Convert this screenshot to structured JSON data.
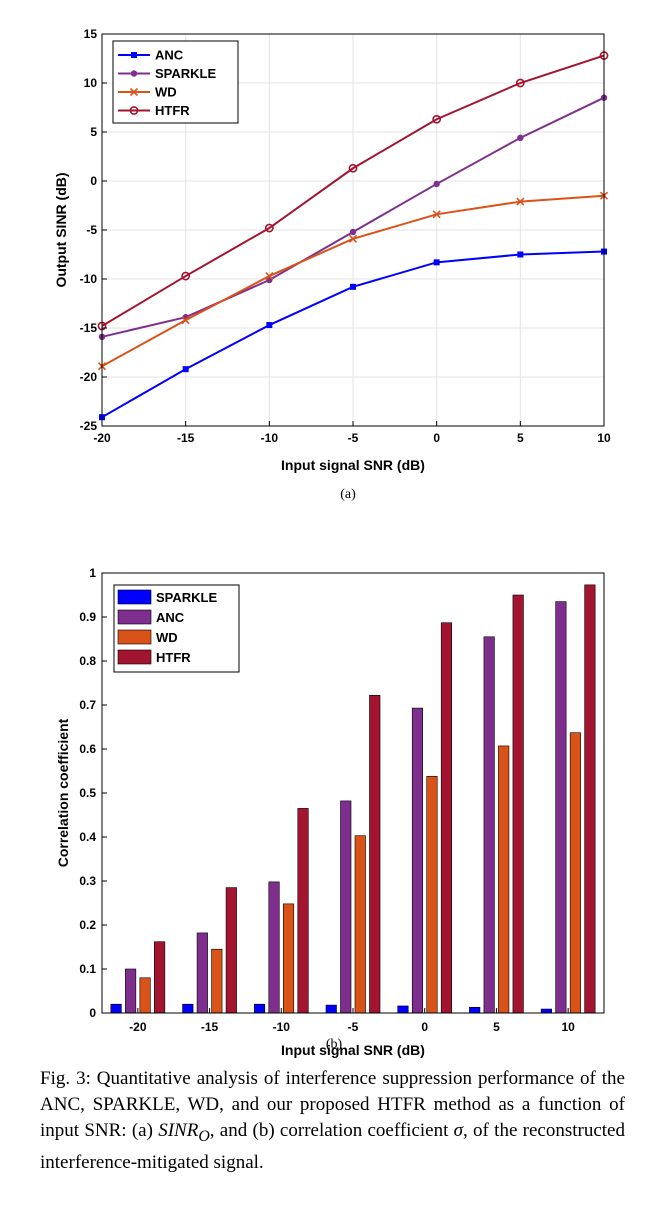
{
  "chart_data": [
    {
      "type": "line",
      "subtitle": "(a)",
      "xlabel": "Input signal SNR (dB)",
      "ylabel": "Output SINR (dB)",
      "xlim": [
        -20,
        10
      ],
      "ylim": [
        -25,
        15
      ],
      "xticks": [
        -20,
        -15,
        -10,
        -5,
        0,
        5,
        10
      ],
      "yticks": [
        -25,
        -20,
        -15,
        -10,
        -5,
        0,
        5,
        10,
        15
      ],
      "grid": true,
      "legend_position": "top-left",
      "x": [
        -20,
        -15,
        -10,
        -5,
        0,
        5,
        10
      ],
      "series": [
        {
          "name": "ANC",
          "color": "#0000ff",
          "marker": "square",
          "values": [
            -24.1,
            -19.2,
            -14.7,
            -10.8,
            -8.3,
            -7.5,
            -7.2
          ]
        },
        {
          "name": "SPARKLE",
          "color": "#7e2f8e",
          "marker": "dot",
          "values": [
            -15.9,
            -13.9,
            -10.1,
            -5.2,
            -0.3,
            4.4,
            8.5
          ]
        },
        {
          "name": "WD",
          "color": "#d95319",
          "marker": "x",
          "values": [
            -18.9,
            -14.2,
            -9.7,
            -5.9,
            -3.4,
            -2.1,
            -1.5
          ]
        },
        {
          "name": "HTFR",
          "color": "#a2142f",
          "marker": "circle",
          "values": [
            -14.8,
            -9.7,
            -4.8,
            1.3,
            6.3,
            10.0,
            12.8
          ]
        }
      ]
    },
    {
      "type": "bar",
      "subtitle": "(b)",
      "xlabel": "Input signal SNR (dB)",
      "ylabel": "Correlation coefficient",
      "categories": [
        "-20",
        "-15",
        "-10",
        "-5",
        "0",
        "5",
        "10"
      ],
      "ylim": [
        0,
        1
      ],
      "yticks": [
        "0",
        "0.1",
        "0.2",
        "0.3",
        "0.4",
        "0.5",
        "0.6",
        "0.7",
        "0.8",
        "0.9",
        "1"
      ],
      "grid": false,
      "legend_position": "top-left",
      "series": [
        {
          "name": "SPARKLE",
          "color": "#0000ff",
          "values": [
            0.02,
            0.02,
            0.02,
            0.018,
            0.016,
            0.013,
            0.009
          ]
        },
        {
          "name": "ANC",
          "color": "#7e2f8e",
          "values": [
            0.1,
            0.182,
            0.298,
            0.482,
            0.693,
            0.855,
            0.935
          ]
        },
        {
          "name": "WD",
          "color": "#d95319",
          "values": [
            0.08,
            0.145,
            0.248,
            0.403,
            0.538,
            0.607,
            0.637
          ]
        },
        {
          "name": "HTFR",
          "color": "#a2142f",
          "values": [
            0.162,
            0.285,
            0.465,
            0.722,
            0.887,
            0.95,
            0.973
          ]
        }
      ]
    }
  ],
  "caption": {
    "lead": "Fig. 3: Quantitative analysis of interference suppression performance of the ANC, SPARKLE, WD, and our proposed HTFR method as a function of input SNR: (a) ",
    "sinr_symbol": "SINR",
    "sinr_subscript": "O",
    "middle": ", and (b) correlation coefficient ",
    "sigma": "σ",
    "tail": ", of the reconstructed interference-mitigated signal."
  }
}
